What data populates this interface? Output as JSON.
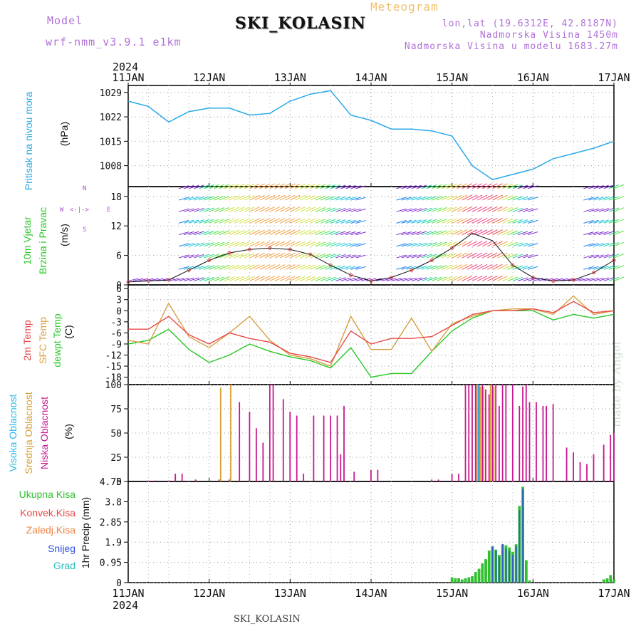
{
  "header": {
    "model_label": "Model",
    "model_name": "wrf-nmm_v3.9.1 e1km",
    "meteogram": "Meteogram",
    "station": "SKI_KOLASIN",
    "lonlat": "lon,lat (19.6312E, 42.8187N)",
    "elevation": "Nadmorska Visina 1450m",
    "model_elevation": "Nadmorska Visina u modelu 1683.27m"
  },
  "footer_station": "SKI_KOLASIN",
  "watermark": "made by Angel",
  "time_axis": {
    "year": "2024",
    "labels": [
      "11JAN",
      "12JAN",
      "13JAN",
      "14JAN",
      "15JAN",
      "16JAN",
      "17JAN"
    ]
  },
  "colors": {
    "pressure": "#2aa8e8",
    "temp": "#e84848",
    "sfc": "#d8a040",
    "dewpt": "#28c828",
    "high_cloud": "#28b8e8",
    "mid_cloud": "#d8a030",
    "low_cloud": "#c81890",
    "precip_total": "#30c030",
    "precip_snow": "#3050e0",
    "wind_label": "#28c828",
    "wind_dir": "#b050d8"
  },
  "panels": {
    "pressure": {
      "label": "Pritisak na nivou mora",
      "unit": "(hPa)",
      "ticks": [
        "1029",
        "1022",
        "1015",
        "1008"
      ]
    },
    "wind": {
      "label1": "10m Vjetar",
      "label2": "Brzina i Pravac",
      "unit": "(m/s)",
      "ticks": [
        "18",
        "12",
        "6",
        "0"
      ],
      "dir_n": "N",
      "dir_w": "W",
      "dir_e": "E",
      "dir_s": "S",
      "dir_arrows": "<-|->"
    },
    "temp": {
      "label1": "2m Temp",
      "label2": "SFC Temp",
      "label3": "dewpt Temp",
      "unit": "(C)",
      "ticks": [
        "6",
        "3",
        "0",
        "-3",
        "-6",
        "-9",
        "-12",
        "-15",
        "-18"
      ]
    },
    "cloud": {
      "label1": "Visoka Oblacnost",
      "label2": "Srednja Oblacnost",
      "label3": "Niska Oblacnost",
      "unit": "(%)",
      "ticks": [
        "100",
        "75",
        "50",
        "25",
        "0"
      ]
    },
    "precip": {
      "labels": [
        "Ukupna Kisa",
        "Konvek.Kisa",
        "Zaledj.Kisa",
        "Snijeg",
        "Grad"
      ],
      "label_colors": [
        "#30c030",
        "#e84848",
        "#f08040",
        "#3050e0",
        "#30c0c0"
      ],
      "axis_label": "1hr Precip (mm)",
      "ticks": [
        "4.75",
        "3.8",
        "2.85",
        "1.9",
        "0.95",
        "0"
      ]
    }
  },
  "chart_data": [
    {
      "type": "line",
      "title": "Pritisak na nivou mora",
      "ylabel": "(hPa)",
      "ylim": [
        1002,
        1031
      ],
      "x": [
        0,
        6,
        12,
        18,
        24,
        30,
        36,
        42,
        48,
        54,
        60,
        66,
        72,
        78,
        84,
        90,
        96,
        102,
        108,
        114,
        120,
        126,
        132,
        138,
        144
      ],
      "series": [
        {
          "name": "Pritisak",
          "values": [
            1026.5,
            1025,
            1020.5,
            1023.5,
            1024.5,
            1024.5,
            1022.5,
            1023,
            1026.5,
            1028.5,
            1029.5,
            1022.5,
            1021,
            1018.5,
            1018.5,
            1018,
            1016.5,
            1008,
            1004,
            1005.5,
            1007,
            1010,
            1011.5,
            1013,
            1015
          ]
        }
      ]
    },
    {
      "type": "line",
      "title": "Brzina i Pravac",
      "ylabel": "(m/s)",
      "ylim": [
        0,
        20
      ],
      "x": [
        0,
        6,
        12,
        18,
        24,
        30,
        36,
        42,
        48,
        54,
        60,
        66,
        72,
        78,
        84,
        90,
        96,
        102,
        108,
        114,
        120,
        126,
        132,
        138,
        144
      ],
      "series": [
        {
          "name": "Brzina",
          "values": [
            0.6,
            0.8,
            1,
            3,
            5,
            6.5,
            7.2,
            7.5,
            7.2,
            6.2,
            4,
            2,
            0.8,
            1.5,
            3,
            5,
            7.5,
            10.5,
            9,
            4,
            1.5,
            0.8,
            1,
            2.5,
            5
          ]
        }
      ]
    },
    {
      "type": "line",
      "title": "Temperatura",
      "ylabel": "(C)",
      "ylim": [
        -20,
        7
      ],
      "x": [
        0,
        6,
        12,
        18,
        24,
        30,
        36,
        42,
        48,
        54,
        60,
        66,
        72,
        78,
        84,
        90,
        96,
        102,
        108,
        114,
        120,
        126,
        132,
        138,
        144
      ],
      "series": [
        {
          "name": "2m Temp",
          "values": [
            -5,
            -5,
            -1.5,
            -6.5,
            -9,
            -6,
            -7.5,
            -8.5,
            -11.5,
            -12.5,
            -14,
            -5.5,
            -9,
            -7.5,
            -7.5,
            -7,
            -4,
            -1,
            0,
            0,
            0.5,
            -0.5,
            2.5,
            -0.5,
            0
          ]
        },
        {
          "name": "SFC Temp",
          "values": [
            -8,
            -9,
            2,
            -7,
            -10,
            -6,
            -1.5,
            -8,
            -12,
            -13,
            -15,
            -1.5,
            -10.5,
            -10.5,
            -2,
            -11,
            -3.5,
            -1.5,
            0,
            0.5,
            0.5,
            -1,
            4,
            -1,
            0
          ]
        },
        {
          "name": "dewpt Temp",
          "values": [
            -9,
            -8,
            -5,
            -10.5,
            -14,
            -12,
            -9,
            -11,
            -12.5,
            -13.5,
            -15.5,
            -10,
            -18,
            -17,
            -17,
            -11,
            -5.5,
            -2,
            0,
            0,
            0,
            -2.5,
            -1,
            -2,
            -1
          ]
        }
      ]
    },
    {
      "type": "bar",
      "title": "Oblacnost",
      "ylabel": "(%)",
      "ylim": [
        0,
        100
      ],
      "x": [
        6,
        8,
        12,
        14,
        16,
        20,
        27,
        30,
        33,
        36,
        38,
        40,
        42,
        43,
        46,
        48,
        50,
        52,
        55,
        58,
        60,
        62,
        63,
        64,
        67,
        72,
        74,
        90,
        92,
        96,
        98,
        100,
        101,
        102,
        103,
        104,
        105,
        106,
        107,
        108,
        109,
        110,
        111,
        112,
        114,
        116,
        117,
        118,
        119,
        121,
        123,
        124,
        126,
        130,
        132,
        134,
        136,
        138,
        141,
        143,
        144
      ],
      "series": [
        {
          "name": "Niska Oblacnost",
          "values": [
            1,
            1,
            1,
            8,
            8,
            2,
            2,
            2,
            82,
            72,
            55,
            40,
            100,
            100,
            85,
            72,
            68,
            8,
            68,
            68,
            68,
            68,
            28,
            78,
            10,
            12,
            12,
            2,
            2,
            8,
            8,
            100,
            100,
            100,
            100,
            100,
            100,
            95,
            90,
            100,
            100,
            78,
            100,
            100,
            100,
            78,
            98,
            100,
            82,
            82,
            78,
            78,
            80,
            35,
            30,
            20,
            18,
            28,
            38,
            48,
            50
          ]
        },
        {
          "name": "Srednja Oblacnost",
          "values": [
            0,
            0,
            0,
            0,
            0,
            0,
            97,
            100,
            0,
            0,
            0,
            0,
            0,
            0,
            0,
            0,
            0,
            0,
            0,
            0,
            0,
            0,
            0,
            0,
            0,
            0,
            0,
            0,
            0,
            0,
            0,
            0,
            0,
            0,
            100,
            98,
            98,
            0,
            100,
            98,
            0,
            0,
            0,
            0,
            0,
            0,
            0,
            0,
            0,
            0,
            0,
            0,
            0,
            0,
            0,
            0,
            0,
            0,
            0,
            0,
            0
          ]
        },
        {
          "name": "Visoka Oblacnost",
          "values": [
            0,
            0,
            0,
            0,
            0,
            0,
            0,
            0,
            0,
            0,
            0,
            0,
            0,
            0,
            0,
            0,
            0,
            0,
            0,
            0,
            0,
            0,
            0,
            0,
            0,
            0,
            0,
            0,
            0,
            0,
            0,
            0,
            0,
            0,
            100,
            0,
            0,
            0,
            0,
            0,
            0,
            0,
            0,
            0,
            0,
            0,
            0,
            0,
            0,
            0,
            0,
            0,
            0,
            0,
            0,
            0,
            0,
            0,
            0,
            0,
            0
          ]
        }
      ]
    },
    {
      "type": "bar",
      "title": "1hr Precip",
      "ylabel": "1hr Precip (mm)",
      "ylim": [
        0,
        4.75
      ],
      "x": [
        96,
        97,
        98,
        99,
        100,
        101,
        102,
        103,
        104,
        105,
        106,
        107,
        108,
        109,
        110,
        111,
        112,
        113,
        114,
        115,
        116,
        117,
        118,
        119,
        141,
        142,
        143,
        144
      ],
      "series": [
        {
          "name": "Ukupna Kisa",
          "values": [
            0.25,
            0.2,
            0.2,
            0.15,
            0.2,
            0.25,
            0.3,
            0.5,
            0.65,
            0.9,
            1.1,
            1.5,
            1.7,
            1.55,
            1.3,
            1.8,
            1.75,
            1.65,
            1.45,
            1.8,
            3.6,
            4.5,
            1.05,
            0.1,
            0.15,
            0.2,
            0.35,
            0.15
          ]
        },
        {
          "name": "Snijeg",
          "values": [
            0,
            0,
            0,
            0,
            0,
            0,
            0,
            0,
            0,
            0,
            0,
            0,
            1.7,
            1.5,
            1.2,
            1.8,
            1.6,
            1.5,
            1.3,
            1.7,
            3.4,
            4.4,
            0,
            0,
            0,
            0,
            0,
            0
          ]
        }
      ]
    }
  ]
}
